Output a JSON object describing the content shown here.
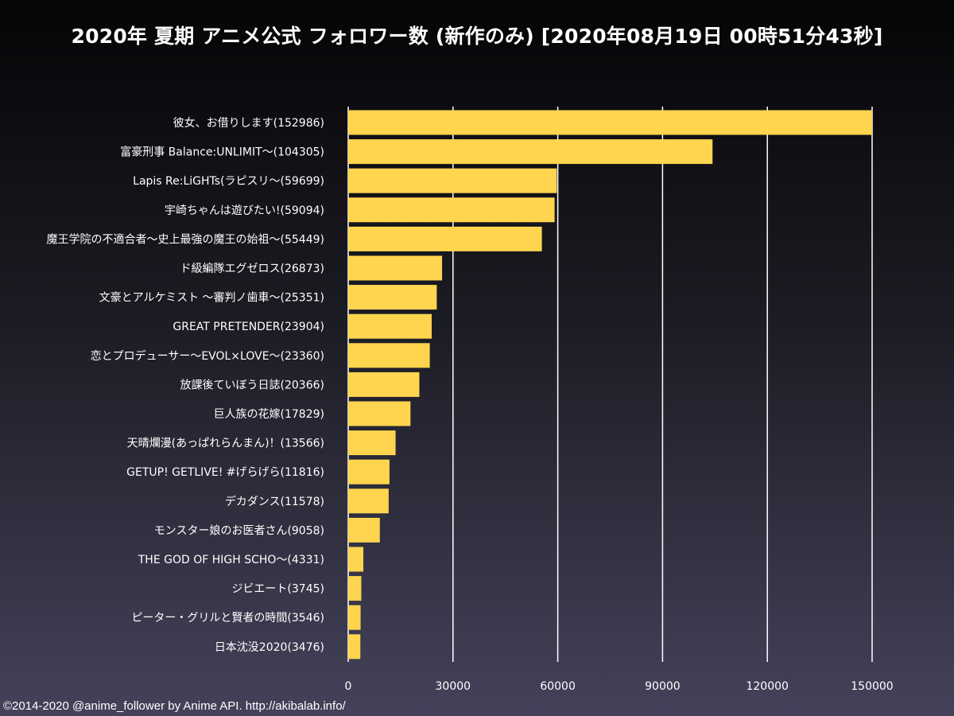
{
  "chart_data": {
    "type": "bar",
    "orientation": "horizontal",
    "title": "2020年 夏期 アニメ公式 フォロワー数 (新作のみ) [2020年08月19日 00時51分43秒]",
    "xlabel": "",
    "ylabel": "",
    "xlim": [
      0,
      150000
    ],
    "xticks": [
      0,
      30000,
      60000,
      90000,
      120000,
      150000
    ],
    "grid": true,
    "categories": [
      "彼女、お借りします(152986)",
      "富豪刑事 Balance:UNLIMIT～(104305)",
      "Lapis Re:LiGHTs(ラピスリ～(59699)",
      "宇崎ちゃんは遊びたい!(59094)",
      "魔王学院の不適合者～史上最強の魔王の始祖～(55449)",
      "ド級編隊エグゼロス(26873)",
      "文豪とアルケミスト ～審判ノ歯車～(25351)",
      "GREAT PRETENDER(23904)",
      "恋とプロデューサー～EVOL×LOVE～(23360)",
      "放課後ていぼう日誌(20366)",
      "巨人族の花嫁(17829)",
      "天晴爛漫(あっぱれらんまん)！(13566)",
      "GETUP! GETLIVE! #げらげら(11816)",
      "デカダンス(11578)",
      "モンスター娘のお医者さん(9058)",
      "THE GOD OF HIGH SCHO～(4331)",
      "ジビエート(3745)",
      "ピーター・グリルと賢者の時間(3546)",
      "日本沈没2020(3476)"
    ],
    "values": [
      152986,
      104305,
      59699,
      59094,
      55449,
      26873,
      25351,
      23904,
      23360,
      20366,
      17829,
      13566,
      11816,
      11578,
      9058,
      4331,
      3745,
      3546,
      3476
    ],
    "bar_color": "#FFD54F",
    "grid_color": "#FFFFFF"
  },
  "footer": {
    "credit": "©2014-2020 @anime_follower by Anime API. http://akibalab.info/"
  }
}
